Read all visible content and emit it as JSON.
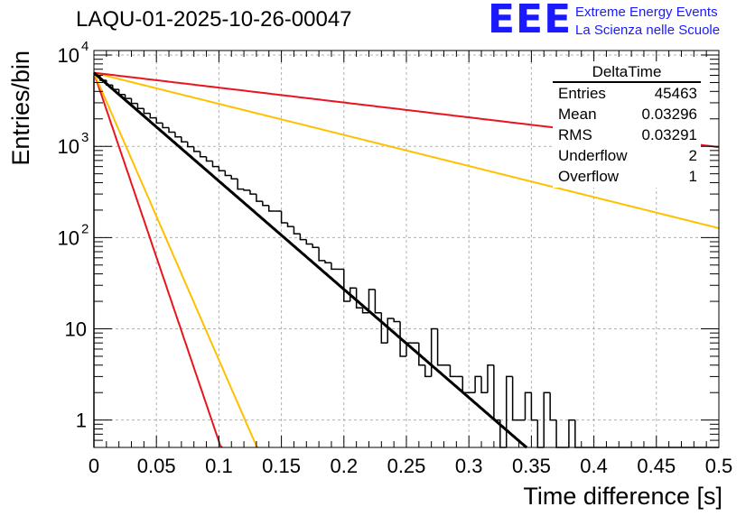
{
  "chart_data": {
    "type": "histogram",
    "title": "LAQU-01-2025-10-26-00047",
    "xlabel": "Time difference [s]",
    "ylabel": "Entries/bin",
    "xlim": [
      0,
      0.5
    ],
    "ylim_log10": [
      -0.3,
      4.05
    ],
    "x_ticks": [
      "0",
      "0.05",
      "0.1",
      "0.15",
      "0.2",
      "0.25",
      "0.3",
      "0.35",
      "0.4",
      "0.45",
      "0.5"
    ],
    "y_ticks": [
      {
        "value": 1,
        "label": "1"
      },
      {
        "value": 10,
        "label": "10"
      },
      {
        "value": 100,
        "label": "10",
        "exp": "2"
      },
      {
        "value": 1000,
        "label": "10",
        "exp": "3"
      },
      {
        "value": 10000,
        "label": "10",
        "exp": "4"
      }
    ],
    "grid": true,
    "bin_width": 0.005,
    "histogram": {
      "name": "DeltaTime",
      "color": "#000000",
      "values": [
        5900,
        5300,
        4700,
        4200,
        3700,
        3350,
        2950,
        2600,
        2300,
        2050,
        1800,
        1600,
        1430,
        1270,
        1120,
        990,
        880,
        770,
        690,
        600,
        540,
        480,
        440,
        340,
        330,
        300,
        250,
        225,
        195,
        195,
        145,
        132,
        110,
        95,
        85,
        78,
        56,
        53,
        45,
        45,
        20,
        28,
        17,
        15,
        27,
        15,
        7,
        13,
        12,
        5,
        7,
        7,
        4,
        3,
        10,
        4,
        4,
        3,
        3,
        2,
        2,
        3,
        2,
        4,
        1,
        0.3,
        3,
        1,
        1,
        2,
        1,
        0.3,
        2,
        1,
        0.3,
        0.3,
        1,
        0.3,
        0.3,
        0.3,
        0.3,
        0.3,
        0.3,
        0.3,
        0.3,
        0.3,
        0.3,
        0.3,
        0.3,
        0.3,
        0.3,
        0.3,
        0.3,
        0.3,
        0.3,
        0.3,
        0.3,
        0.3,
        0.3,
        0.3
      ]
    },
    "curves": [
      {
        "name": "fit",
        "color": "#000000",
        "width": 3,
        "N0": 6400,
        "tau": 0.0366
      },
      {
        "name": "red-steep",
        "color": "#e8141e",
        "width": 2,
        "N0": 6400,
        "tau": 0.01075
      },
      {
        "name": "orange-steep",
        "color": "#ffc000",
        "width": 2,
        "N0": 6400,
        "tau": 0.0138
      },
      {
        "name": "orange-slow",
        "color": "#ffc000",
        "width": 2,
        "N0": 6400,
        "tau": 0.1275
      },
      {
        "name": "red-slow",
        "color": "#e8141e",
        "width": 2,
        "N0": 6400,
        "tau": 0.2665
      }
    ],
    "stats_box": {
      "title": "DeltaTime",
      "rows": [
        {
          "label": "Entries",
          "value": "45463"
        },
        {
          "label": "Mean",
          "value": "0.03296"
        },
        {
          "label": "RMS",
          "value": "0.03291"
        },
        {
          "label": "Underflow",
          "value": "2"
        },
        {
          "label": "Overflow",
          "value": "1"
        }
      ]
    }
  },
  "logo": {
    "mark": "EEE",
    "line1": "Extreme Energy Events",
    "line2": "La Scienza nelle Scuole",
    "color": "#1a1aff"
  }
}
